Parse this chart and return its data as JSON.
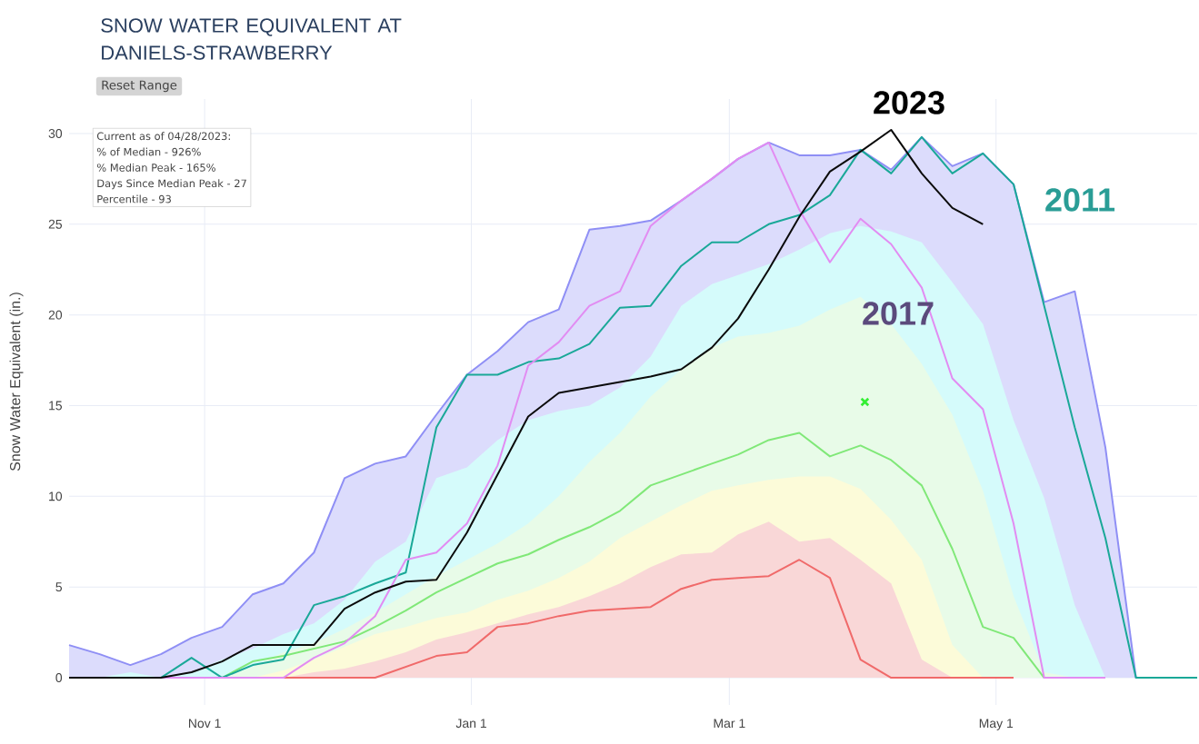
{
  "chart_data": {
    "type": "line",
    "title": "SNOW WATER EQUIVALENT AT DANIELS-STRAWBERRY",
    "ylabel": "Snow Water Equivalent (in.)",
    "x": [
      "2022-10-01",
      "2022-10-08",
      "2022-10-15",
      "2022-10-22",
      "2022-10-29",
      "2022-11-05",
      "2022-11-12",
      "2022-11-19",
      "2022-11-26",
      "2022-12-03",
      "2022-12-10",
      "2022-12-17",
      "2022-12-24",
      "2022-12-31",
      "2023-01-07",
      "2023-01-14",
      "2023-01-21",
      "2023-01-28",
      "2023-02-04",
      "2023-02-11",
      "2023-02-18",
      "2023-02-25",
      "2023-03-03",
      "2023-03-10",
      "2023-03-17",
      "2023-03-24",
      "2023-03-31",
      "2023-04-07",
      "2023-04-14",
      "2023-04-21",
      "2023-04-28",
      "2023-05-05",
      "2023-05-12",
      "2023-05-19",
      "2023-05-26",
      "2023-06-02",
      "2023-06-09",
      "2023-06-16"
    ],
    "xlim": [
      "2022-10-01",
      "2023-06-16"
    ],
    "xticks": [
      {
        "value": "2022-11-01",
        "label": "Nov 1"
      },
      {
        "value": "2023-01-01",
        "label": "Jan 1"
      },
      {
        "value": "2023-03-01",
        "label": "Mar 1"
      },
      {
        "value": "2023-05-01",
        "label": "May 1"
      }
    ],
    "ylim": [
      -1.5,
      31.9
    ],
    "yticks": [
      {
        "value": 0,
        "label": "0"
      },
      {
        "value": 5,
        "label": "5"
      },
      {
        "value": 10,
        "label": "10"
      },
      {
        "value": 15,
        "label": "15"
      },
      {
        "value": 20,
        "label": "20"
      },
      {
        "value": 25,
        "label": "25"
      },
      {
        "value": 30,
        "label": "30"
      }
    ],
    "grid": true,
    "series": [
      {
        "type": "area",
        "color": "#8f8ff5",
        "line_style": "solid",
        "values": [
          1.8,
          1.3,
          0.7,
          1.3,
          2.2,
          2.8,
          4.6,
          5.2,
          6.9,
          11.0,
          11.8,
          12.2,
          14.5,
          16.7,
          18.0,
          19.6,
          20.3,
          24.7,
          24.9,
          25.2,
          26.3,
          27.5,
          28.6,
          29.5,
          28.8,
          28.8,
          29.1,
          28.0,
          29.8,
          28.2,
          28.9,
          27.2,
          20.7,
          21.3,
          12.7,
          0,
          0,
          0
        ]
      },
      {
        "type": "area",
        "color": "#d5fbfb",
        "values": [
          0,
          0,
          0.3,
          0,
          0.3,
          1.0,
          1.6,
          2.4,
          3.0,
          4.3,
          6.4,
          7.5,
          11.0,
          11.6,
          13.1,
          14.2,
          14.7,
          15.0,
          16.0,
          17.7,
          20.5,
          21.7,
          22.2,
          22.8,
          23.6,
          24.5,
          24.9,
          24.6,
          24.0,
          21.8,
          19.5,
          14.2,
          9.9,
          4.0,
          0,
          0,
          0,
          0
        ]
      },
      {
        "type": "area",
        "color": "#e8fbe8",
        "values": [
          0,
          0,
          0,
          0,
          0,
          0,
          0.6,
          1.4,
          1.9,
          2.7,
          3.6,
          4.6,
          5.6,
          6.5,
          7.4,
          8.5,
          10.0,
          11.9,
          13.5,
          15.5,
          17.0,
          18.2,
          18.8,
          19.0,
          19.4,
          20.3,
          21.0,
          19.5,
          17.3,
          14.5,
          10.3,
          4.5,
          0.3,
          0,
          0,
          0,
          0,
          0
        ]
      },
      {
        "type": "area",
        "color": "#fcfbd9",
        "values": [
          0,
          0,
          0,
          0,
          0,
          0,
          0,
          0.4,
          1.0,
          1.7,
          2.4,
          2.8,
          3.3,
          3.6,
          4.3,
          4.8,
          5.5,
          6.4,
          7.7,
          8.6,
          9.5,
          10.3,
          10.6,
          10.9,
          11.1,
          11.1,
          10.4,
          8.7,
          6.5,
          1.8,
          0,
          0,
          0,
          0,
          0,
          0,
          0,
          0
        ]
      },
      {
        "type": "area",
        "color": "#f9d7d7",
        "values": [
          0,
          0,
          0,
          0,
          0,
          0,
          0,
          0,
          0.3,
          0.5,
          0.9,
          1.4,
          2.1,
          2.5,
          3.0,
          3.5,
          3.9,
          4.5,
          5.2,
          6.1,
          6.8,
          6.9,
          7.9,
          8.6,
          7.5,
          7.7,
          6.5,
          5.2,
          1.0,
          0,
          0,
          0,
          0,
          0,
          0,
          0,
          0,
          0
        ]
      },
      {
        "color": "#f06a6a",
        "values": [
          null,
          null,
          null,
          null,
          null,
          null,
          0,
          0,
          0,
          0,
          0,
          0.6,
          1.2,
          1.4,
          2.8,
          3.0,
          3.4,
          3.7,
          3.8,
          3.9,
          4.9,
          5.4,
          5.5,
          5.6,
          6.5,
          5.5,
          1.0,
          0,
          0,
          0,
          0,
          0,
          null,
          null,
          null,
          null,
          null,
          null
        ]
      },
      {
        "color": "#80e878",
        "values": [
          null,
          null,
          null,
          null,
          0,
          0,
          0.9,
          1.2,
          1.6,
          2.0,
          2.8,
          3.7,
          4.7,
          5.5,
          6.3,
          6.8,
          7.6,
          8.3,
          9.2,
          10.6,
          11.2,
          11.8,
          12.3,
          13.1,
          13.5,
          12.2,
          12.8,
          12.0,
          10.6,
          7.1,
          2.8,
          2.2,
          0,
          null,
          null,
          null,
          null,
          null
        ]
      },
      {
        "color": "#1aa898",
        "values": [
          null,
          null,
          null,
          0,
          1.1,
          0,
          0.7,
          1.0,
          4.0,
          4.5,
          5.2,
          5.8,
          13.8,
          16.7,
          16.7,
          17.4,
          17.6,
          18.4,
          20.4,
          20.5,
          22.7,
          24.0,
          24.0,
          25.0,
          25.5,
          26.6,
          29.1,
          27.8,
          29.8,
          27.8,
          28.9,
          27.2,
          20.5,
          13.8,
          7.7,
          0,
          0,
          0
        ]
      },
      {
        "color": "#e28cf2",
        "values": [
          null,
          null,
          0,
          0,
          0,
          0,
          0,
          0,
          1.1,
          1.9,
          3.4,
          6.5,
          6.9,
          8.5,
          11.7,
          17.2,
          18.5,
          20.5,
          21.3,
          24.9,
          26.3,
          27.5,
          28.6,
          29.5,
          25.8,
          22.9,
          25.3,
          23.9,
          21.5,
          16.5,
          14.8,
          8.5,
          0,
          0,
          0,
          null,
          null,
          null
        ]
      },
      {
        "color": "#0b0b0b",
        "values": [
          0,
          0,
          0,
          0,
          0.3,
          0.9,
          1.8,
          1.8,
          1.8,
          3.8,
          4.7,
          5.3,
          5.4,
          8.0,
          11.2,
          14.4,
          15.7,
          16.0,
          16.3,
          16.6,
          17.0,
          18.2,
          19.8,
          22.5,
          25.4,
          27.9,
          29.0,
          30.2,
          27.8,
          25.9,
          25.0,
          null,
          null,
          null,
          null,
          null,
          null,
          null
        ]
      },
      {
        "type": "scatter",
        "color": "#33ee33",
        "marker": "cross",
        "x": [
          "2023-04-01"
        ],
        "values": [
          15.2
        ]
      }
    ],
    "annotations": [
      "Reset Range",
      "Current as of 04/28/2023:",
      "% of Median - 926%",
      "% Median Peak - 165%",
      "Days Since Median Peak - 27",
      "Percentile - 93",
      "2023",
      "2011",
      "2017"
    ]
  }
}
